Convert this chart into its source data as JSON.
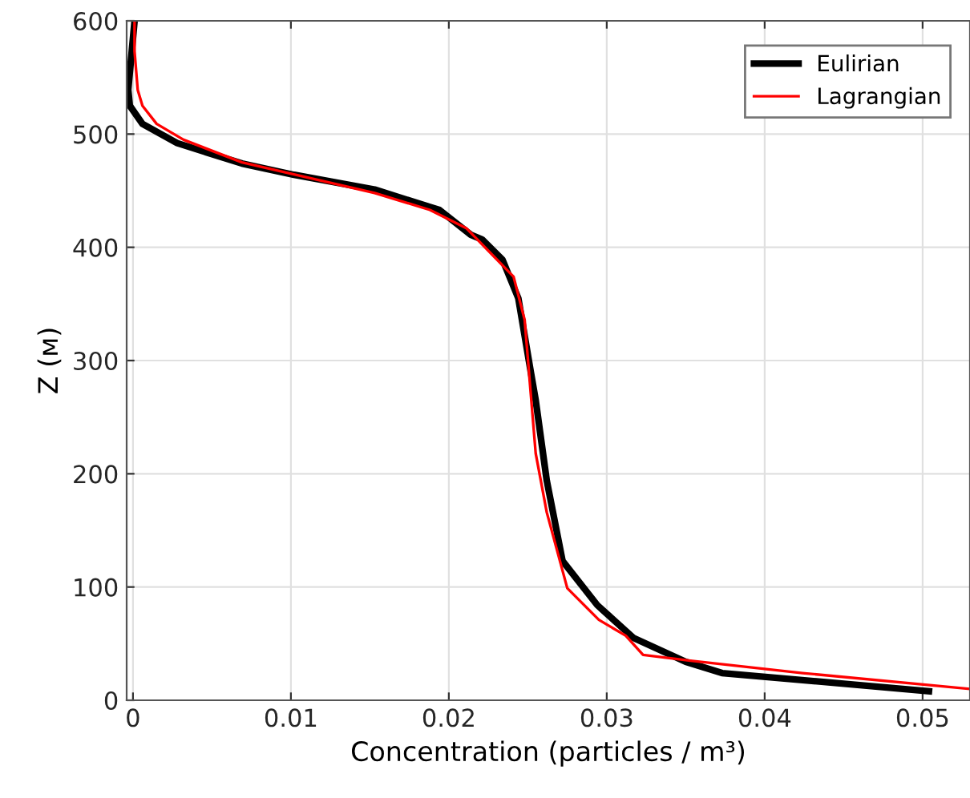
{
  "chart_data": {
    "type": "line",
    "xlabel": "Concentration (particles / m³)",
    "ylabel": "Z (м)",
    "xlim": [
      -0.0004,
      0.053
    ],
    "ylim": [
      0,
      600
    ],
    "xticks": [
      0,
      0.01,
      0.02,
      0.03,
      0.04,
      0.05
    ],
    "yticks": [
      0,
      100,
      200,
      300,
      400,
      500,
      600
    ],
    "grid": true,
    "legend": "top right",
    "line_style": "solid",
    "marker": "none",
    "series": [
      {
        "name": "Eulirian",
        "color": "#000000",
        "x": [
          0.0001,
          -0.0003,
          -0.0002,
          0.0006,
          0.0028,
          0.0069,
          0.0102,
          0.0153,
          0.0194,
          0.0214,
          0.0221,
          0.0234,
          0.0244,
          0.0252,
          0.0255,
          0.0262,
          0.0272,
          0.0294,
          0.0317,
          0.035,
          0.0373,
          0.0504
        ],
        "values": [
          600,
          539,
          525,
          509,
          492,
          474,
          464,
          451,
          433,
          411,
          407,
          389,
          355,
          289,
          265,
          194,
          123,
          84,
          55,
          34,
          24,
          8
        ]
      },
      {
        "name": "Lagrangian",
        "color": "#ff0000",
        "x": [
          0.0001,
          0.0001,
          0.0003,
          0.0006,
          0.0015,
          0.0032,
          0.0069,
          0.0153,
          0.0188,
          0.0211,
          0.0241,
          0.0248,
          0.0255,
          0.0262,
          0.0275,
          0.0295,
          0.0312,
          0.0323,
          0.0353,
          0.0424,
          0.053
        ],
        "values": [
          600,
          573,
          539,
          525,
          509,
          495,
          475,
          448,
          433,
          417,
          374,
          336,
          218,
          166,
          99,
          71,
          57,
          40,
          35,
          24,
          10
        ]
      }
    ]
  }
}
